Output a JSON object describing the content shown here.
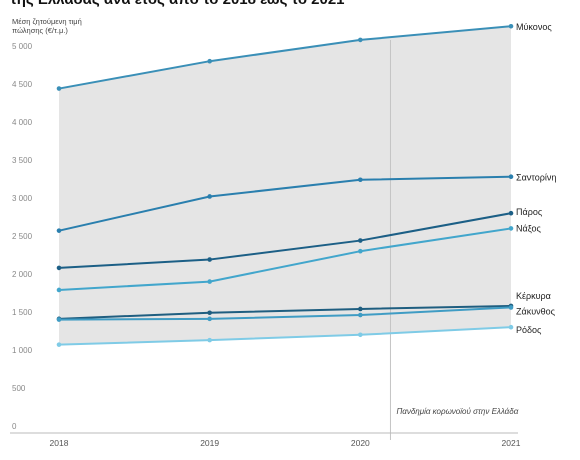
{
  "title": "της Ελλάδας ανά έτος από το 2018 έως το 2021",
  "chart_data": {
    "type": "line",
    "title": "της Ελλάδας ανά έτος από το 2018 έως το 2021",
    "ylabel_lines": [
      "Μέση ζητούμενη τιμή",
      "πώλησης (€/τ.μ.)"
    ],
    "x": [
      "2018",
      "2019",
      "2020",
      "2021"
    ],
    "ylim": [
      0,
      5000
    ],
    "yticks": [
      "0",
      "500",
      "1 000",
      "1 500",
      "2 000",
      "2 500",
      "3 000",
      "3 500",
      "4 000",
      "4 500",
      "5 000"
    ],
    "series": [
      {
        "name": "Μύκονος",
        "values": [
          4440,
          4800,
          5080,
          5260
        ],
        "color": "#3a8fb7"
      },
      {
        "name": "Σαντορίνη",
        "values": [
          2570,
          3020,
          3240,
          3280
        ],
        "color": "#2a7fae"
      },
      {
        "name": "Πάρος",
        "values": [
          2080,
          2190,
          2440,
          2800
        ],
        "color": "#1c5f86"
      },
      {
        "name": "Νάξος",
        "values": [
          1790,
          1900,
          2300,
          2600
        ],
        "color": "#42a6cc"
      },
      {
        "name": "Κέρκυρα",
        "values": [
          1410,
          1490,
          1540,
          1580
        ],
        "color": "#1f5e80"
      },
      {
        "name": "Ζάκυνθος",
        "values": [
          1400,
          1410,
          1460,
          1560
        ],
        "color": "#3f9cc4"
      },
      {
        "name": "Ρόδος",
        "values": [
          1070,
          1130,
          1200,
          1300
        ],
        "color": "#7fcbe6"
      }
    ],
    "shaded_band": {
      "upper": "Μύκονος",
      "lower": "Ρόδος",
      "color": "#e5e5e5"
    },
    "annotation": {
      "x": 2020.2,
      "label": "Πανδημία κορωνοϊού στην Ελλάδα"
    },
    "grid": false
  }
}
